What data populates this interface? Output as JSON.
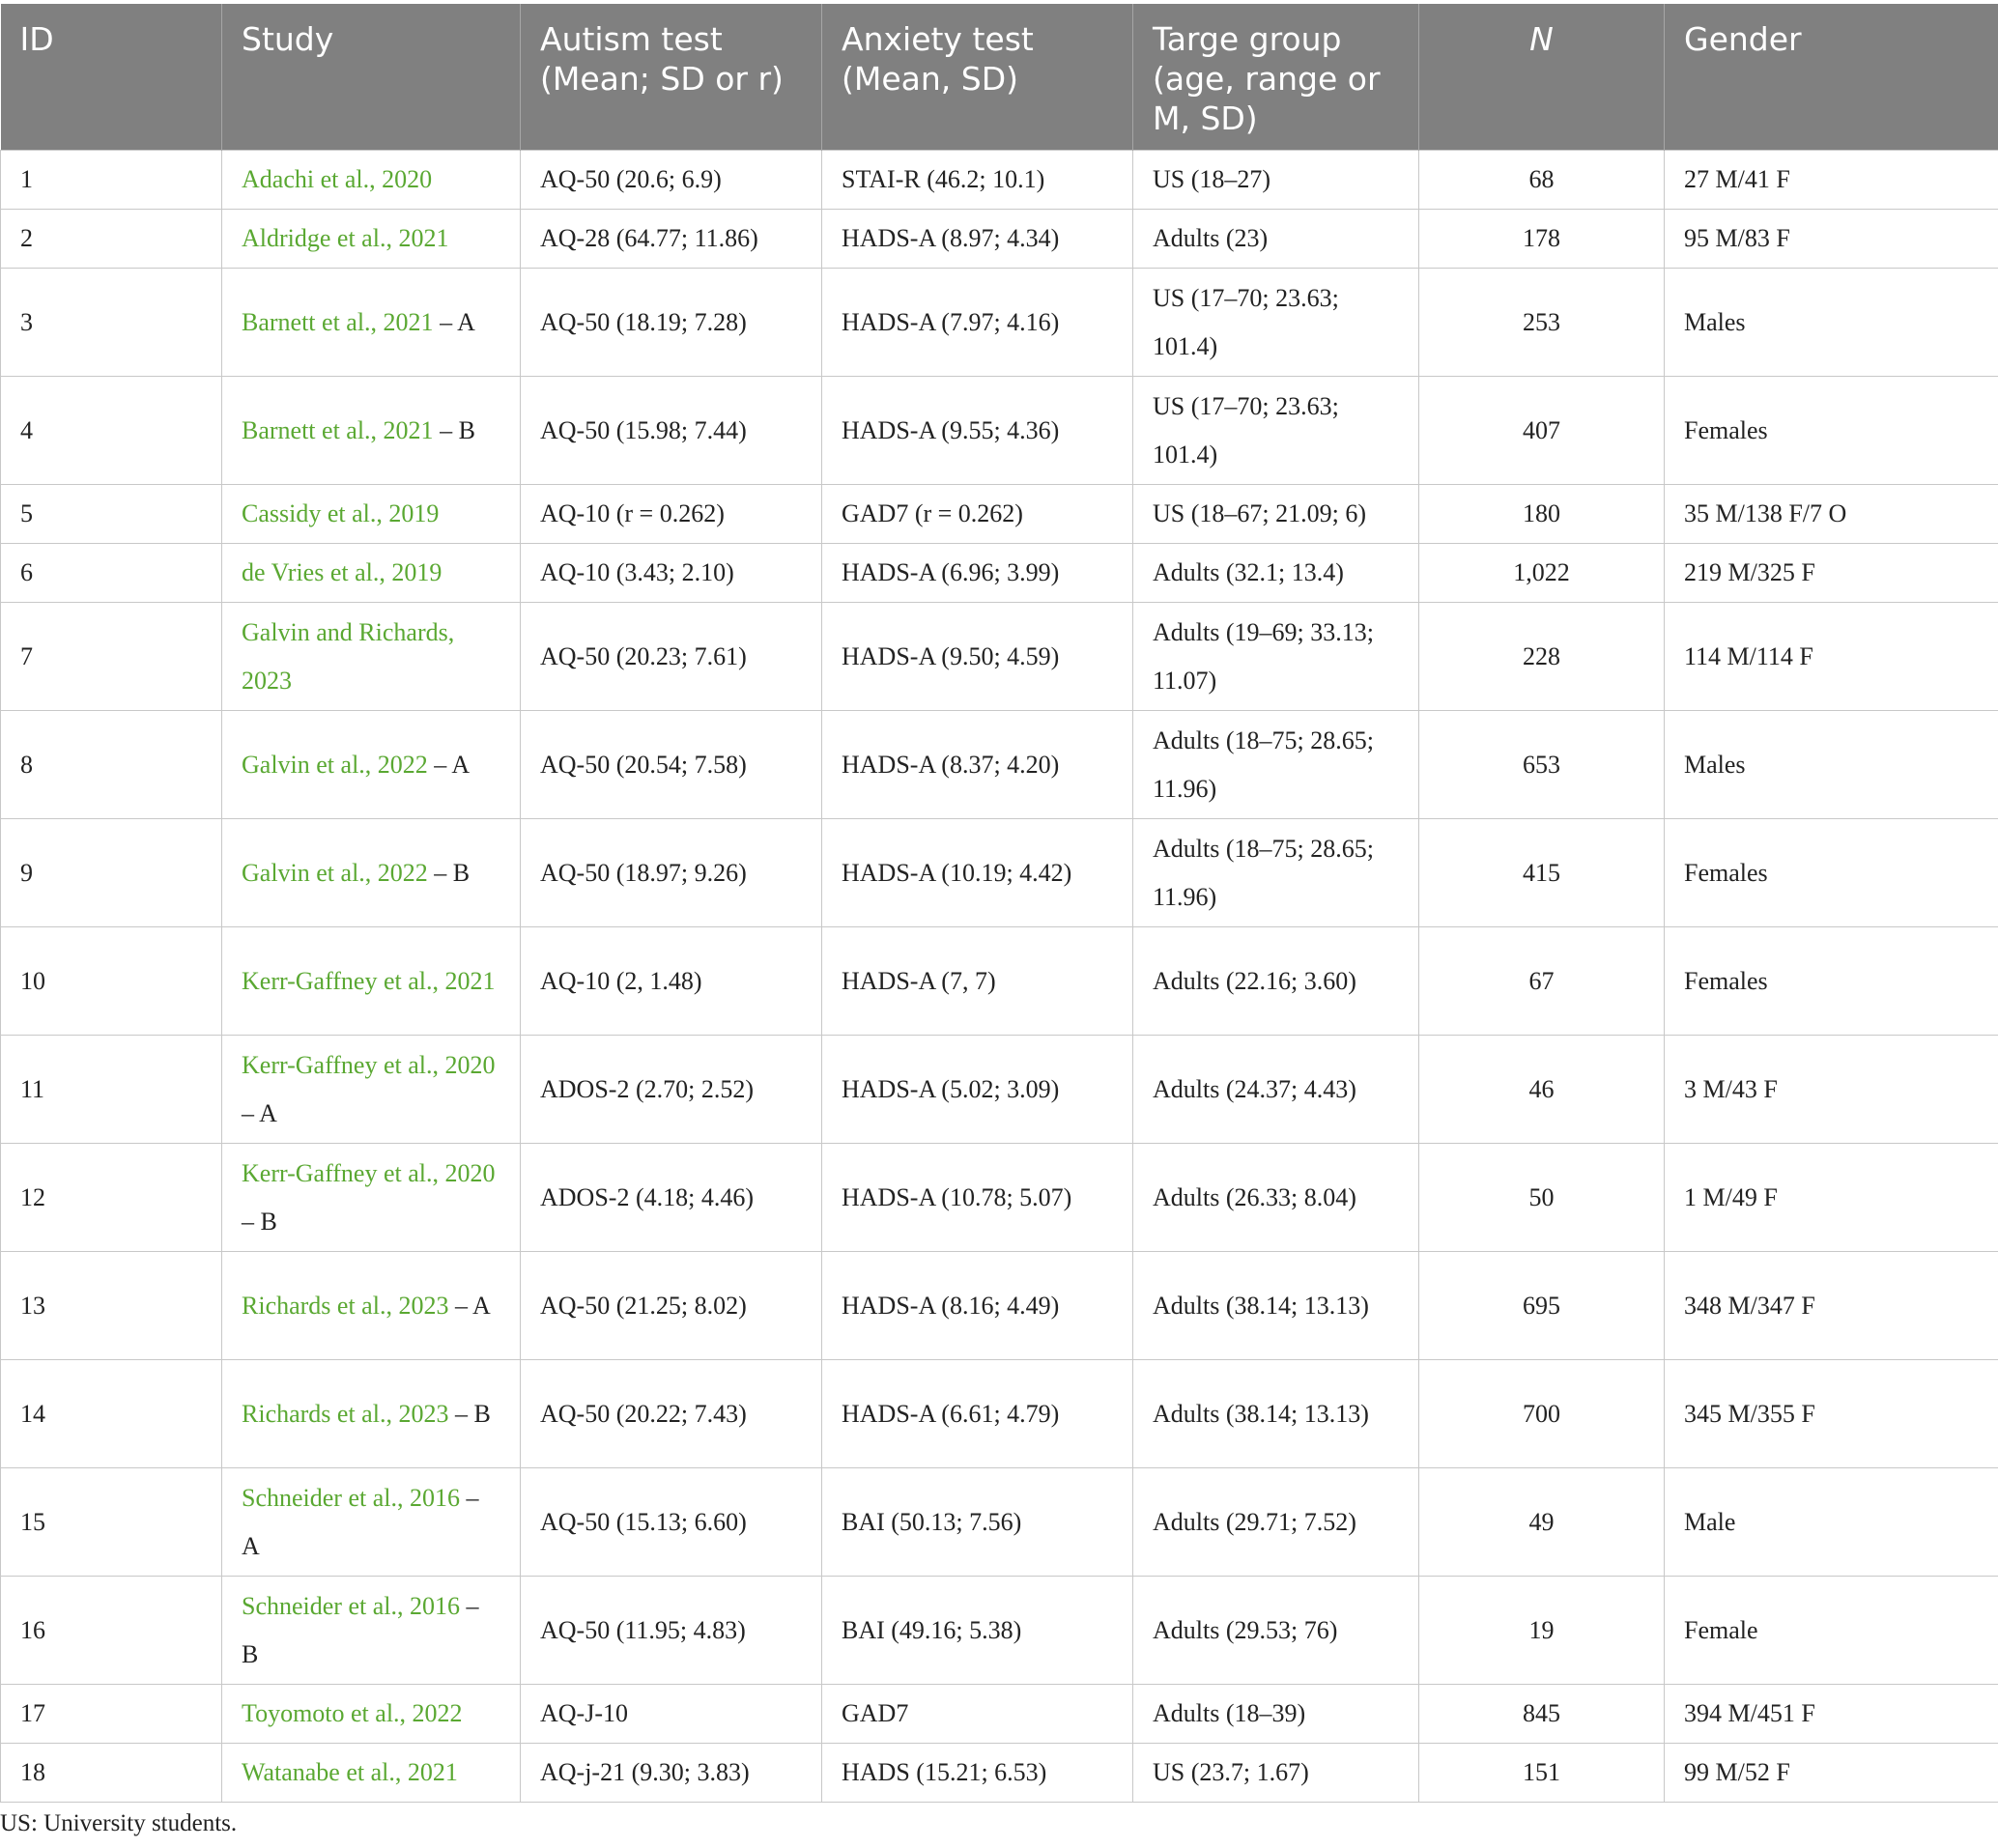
{
  "headers": {
    "id": "ID",
    "study": "Study",
    "autism": "Autism test (Mean; SD or r)",
    "anxiety": "Anxiety test (Mean, SD)",
    "target": "Targe group (age, range or M, SD)",
    "n": "N",
    "gender": "Gender"
  },
  "rows": [
    {
      "id": "1",
      "study": "Adachi et al., 2020",
      "suffix": "",
      "autism": "AQ-50 (20.6; 6.9)",
      "anxiety": "STAI-R (46.2; 10.1)",
      "target": "US (18–27)",
      "n": "68",
      "gender": "27 M/41 F"
    },
    {
      "id": "2",
      "study": "Aldridge et al., 2021",
      "suffix": "",
      "autism": "AQ-28 (64.77; 11.86)",
      "anxiety": "HADS-A (8.97; 4.34)",
      "target": "Adults (23)",
      "n": "178",
      "gender": "95 M/83 F"
    },
    {
      "id": "3",
      "study": "Barnett et al., 2021",
      "suffix": " – A",
      "autism": "AQ-50 (18.19; 7.28)",
      "anxiety": "HADS-A (7.97; 4.16)",
      "target": "US (17–70; 23.63; 101.4)",
      "n": "253",
      "gender": "Males"
    },
    {
      "id": "4",
      "study": "Barnett et al., 2021",
      "suffix": " – B",
      "autism": "AQ-50 (15.98; 7.44)",
      "anxiety": "HADS-A (9.55; 4.36)",
      "target": "US (17–70; 23.63; 101.4)",
      "n": "407",
      "gender": "Females"
    },
    {
      "id": "5",
      "study": "Cassidy et al., 2019",
      "suffix": "",
      "autism": "AQ-10 (r = 0.262)",
      "anxiety": "GAD7 (r = 0.262)",
      "target": "US (18–67; 21.09; 6)",
      "n": "180",
      "gender": "35 M/138 F/7 O"
    },
    {
      "id": "6",
      "study": "de Vries et al., 2019",
      "suffix": "",
      "autism": "AQ-10 (3.43; 2.10)",
      "anxiety": "HADS-A (6.96; 3.99)",
      "target": "Adults (32.1; 13.4)",
      "n": "1,022",
      "gender": "219 M/325 F"
    },
    {
      "id": "7",
      "study": "Galvin and Richards, 2023",
      "suffix": "",
      "autism": "AQ-50 (20.23; 7.61)",
      "anxiety": "HADS-A (9.50; 4.59)",
      "target": "Adults (19–69; 33.13; 11.07)",
      "n": "228",
      "gender": "114 M/114 F"
    },
    {
      "id": "8",
      "study": "Galvin et al., 2022",
      "suffix": " – A",
      "autism": "AQ-50 (20.54; 7.58)",
      "anxiety": "HADS-A (8.37; 4.20)",
      "target": "Adults (18–75; 28.65; 11.96)",
      "n": "653",
      "gender": "Males"
    },
    {
      "id": "9",
      "study": "Galvin et al., 2022",
      "suffix": " – B",
      "autism": "AQ-50 (18.97; 9.26)",
      "anxiety": "HADS-A (10.19; 4.42)",
      "target": "Adults (18–75; 28.65; 11.96)",
      "n": "415",
      "gender": "Females"
    },
    {
      "id": "10",
      "study": "Kerr-Gaffney et al., 2021",
      "suffix": "",
      "autism": "AQ-10 (2, 1.48)",
      "anxiety": "HADS-A (7, 7)",
      "target": "Adults (22.16; 3.60)",
      "n": "67",
      "gender": "Females"
    },
    {
      "id": "11",
      "study": "Kerr-Gaffney et al., 2020",
      "suffix": " – A",
      "autism": "ADOS-2 (2.70; 2.52)",
      "anxiety": "HADS-A (5.02; 3.09)",
      "target": "Adults (24.37; 4.43)",
      "n": "46",
      "gender": "3 M/43 F"
    },
    {
      "id": "12",
      "study": "Kerr-Gaffney et al., 2020",
      "suffix": " – B",
      "autism": "ADOS-2 (4.18; 4.46)",
      "anxiety": "HADS-A (10.78; 5.07)",
      "target": "Adults (26.33; 8.04)",
      "n": "50",
      "gender": "1 M/49 F"
    },
    {
      "id": "13",
      "study": "Richards et al., 2023",
      "suffix": " – A",
      "autism": "AQ-50 (21.25; 8.02)",
      "anxiety": "HADS-A (8.16; 4.49)",
      "target": "Adults (38.14; 13.13)",
      "n": "695",
      "gender": "348 M/347 F"
    },
    {
      "id": "14",
      "study": "Richards et al., 2023",
      "suffix": " – B",
      "autism": "AQ-50 (20.22; 7.43)",
      "anxiety": "HADS-A (6.61; 4.79)",
      "target": "Adults (38.14; 13.13)",
      "n": "700",
      "gender": "345 M/355 F"
    },
    {
      "id": "15",
      "study": "Schneider et al., 2016",
      "suffix": " – A",
      "autism": "AQ-50 (15.13; 6.60)",
      "anxiety": "BAI (50.13; 7.56)",
      "target": "Adults (29.71; 7.52)",
      "n": "49",
      "gender": "Male"
    },
    {
      "id": "16",
      "study": "Schneider et al., 2016",
      "suffix": " – B",
      "autism": "AQ-50 (11.95; 4.83)",
      "anxiety": "BAI (49.16; 5.38)",
      "target": "Adults (29.53; 76)",
      "n": "19",
      "gender": "Female"
    },
    {
      "id": "17",
      "study": "Toyomoto et al., 2022",
      "suffix": "",
      "autism": "AQ-J-10",
      "anxiety": "GAD7",
      "target": "Adults (18–39)",
      "n": "845",
      "gender": "394 M/451 F"
    },
    {
      "id": "18",
      "study": "Watanabe et al., 2021",
      "suffix": "",
      "autism": "AQ-j-21 (9.30; 3.83)",
      "anxiety": "HADS (15.21; 6.53)",
      "target": "US (23.7; 1.67)",
      "n": "151",
      "gender": "99 M/52 F"
    }
  ],
  "footnote": "US: University students.",
  "colors": {
    "header_bg": "#808080",
    "header_text": "#ffffff",
    "link": "#5aa832"
  }
}
